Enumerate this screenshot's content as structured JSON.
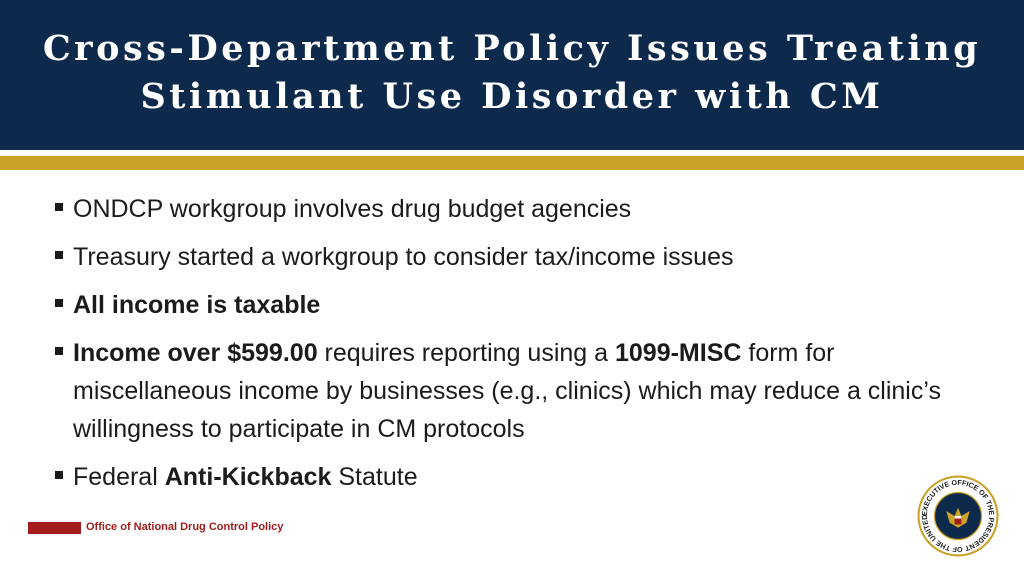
{
  "slide": {
    "title_line1": "Cross-Department Policy Issues Treating",
    "title_line2": "Stimulant Use Disorder with CM",
    "bullets": {
      "b1": "ONDCP workgroup involves drug budget agencies",
      "b2": "Treasury started a workgroup to consider tax/income issues",
      "b3": "All income is taxable",
      "b4_bold1": "Income over $599.00",
      "b4_text1": " requires reporting using a ",
      "b4_bold2": "1099-MISC",
      "b4_text2": " form for miscellaneous income by businesses (e.g., clinics) which may reduce a clinic’s willingness to participate in CM protocols",
      "b5_text1": "Federal ",
      "b5_bold": "Anti-Kickback",
      "b5_text2": " Statute"
    }
  },
  "footer": {
    "label": "Office of National Drug Control Policy",
    "seal_text_top": "EXECUTIVE OFFICE OF THE PRESIDENT OF THE UNITED STATES"
  },
  "colors": {
    "header_bg": "#0d2a4d",
    "gold_accent": "#c9a227",
    "footer_red": "#a11d1d"
  },
  "icons": {
    "bullet": "square-bullet-icon",
    "seal": "presidential-seal-icon"
  }
}
